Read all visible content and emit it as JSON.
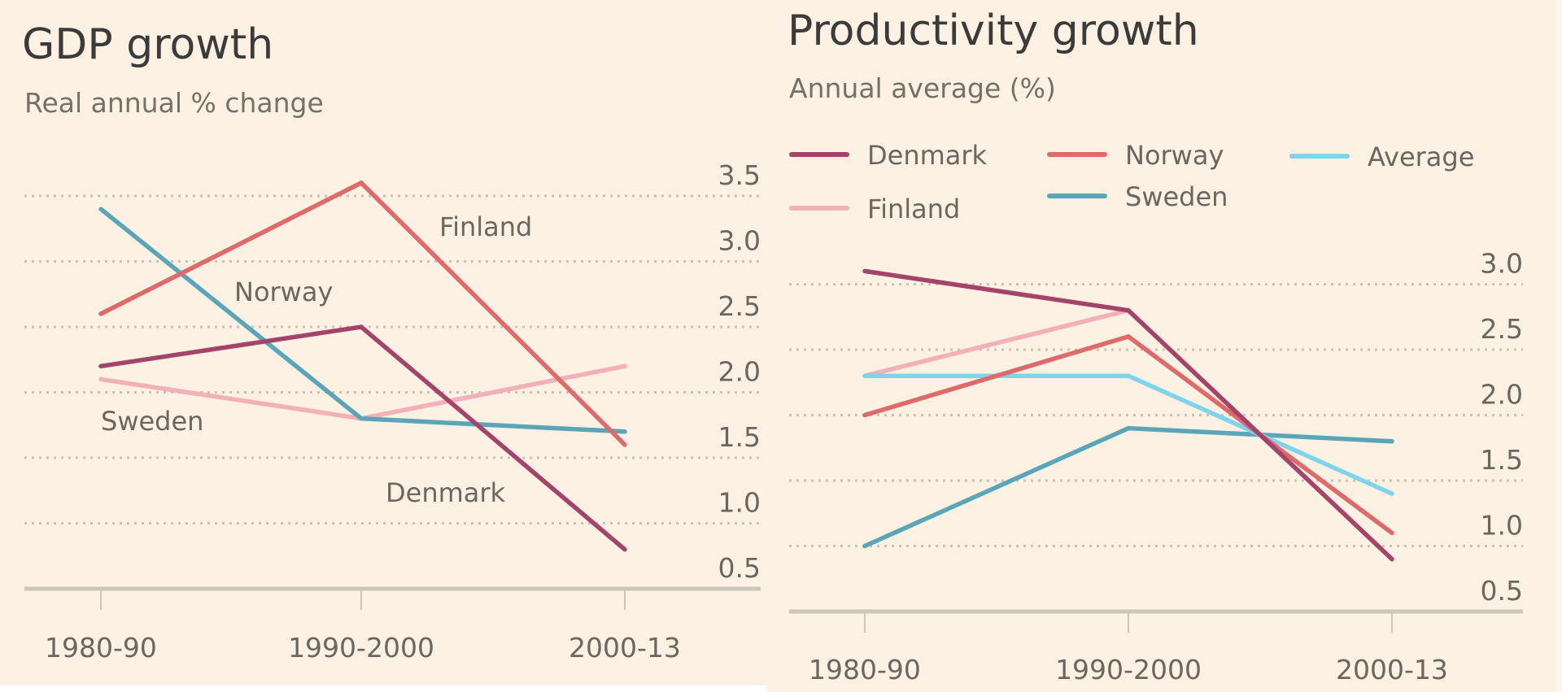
{
  "chart_data": [
    {
      "type": "line",
      "title": "GDP growth",
      "subtitle": "Real annual % change",
      "xlabel": "",
      "ylabel": "",
      "categories": [
        "1980-90",
        "1990-2000",
        "2000-13"
      ],
      "yticks": [
        "0.5",
        "1.0",
        "1.5",
        "2.0",
        "2.5",
        "3.0",
        "3.5"
      ],
      "ylim": [
        0.5,
        3.5
      ],
      "grid": true,
      "legend": "inline-labels",
      "series": [
        {
          "name": "Finland",
          "color": "#f3b0b8",
          "values": [
            2.1,
            1.8,
            2.2
          ]
        },
        {
          "name": "Sweden",
          "color": "#5aa6b8",
          "values": [
            3.4,
            1.8,
            1.7
          ]
        },
        {
          "name": "Denmark",
          "color": "#a5446a",
          "values": [
            2.2,
            2.5,
            0.8
          ]
        },
        {
          "name": "Norway",
          "color": "#e06a6a",
          "values": [
            2.6,
            3.6,
            1.6
          ]
        }
      ],
      "annotations": [
        {
          "text": "Finland"
        },
        {
          "text": "Norway"
        },
        {
          "text": "Sweden"
        },
        {
          "text": "Denmark"
        }
      ]
    },
    {
      "type": "line",
      "title": "Productivity growth",
      "subtitle": "Annual average (%)",
      "xlabel": "",
      "ylabel": "",
      "categories": [
        "1980-90",
        "1990-2000",
        "2000-13"
      ],
      "yticks": [
        "0.5",
        "1.0",
        "1.5",
        "2.0",
        "2.5",
        "3.0"
      ],
      "ylim": [
        0.5,
        3.0
      ],
      "grid": true,
      "legend": "top-left",
      "legend_entries": [
        "Denmark",
        "Norway",
        "Average",
        "Finland",
        "Sweden"
      ],
      "series": [
        {
          "name": "Finland",
          "color": "#f3b0b8",
          "values": [
            2.3,
            2.8,
            0.9
          ]
        },
        {
          "name": "Sweden",
          "color": "#5aa6b8",
          "values": [
            1.0,
            1.9,
            1.8
          ]
        },
        {
          "name": "Average",
          "color": "#7fd4ec",
          "values": [
            2.3,
            2.3,
            1.4
          ]
        },
        {
          "name": "Norway",
          "color": "#e06a6a",
          "values": [
            2.0,
            2.6,
            1.1
          ]
        },
        {
          "name": "Denmark",
          "color": "#a5446a",
          "values": [
            3.1,
            2.8,
            0.9
          ]
        }
      ]
    }
  ]
}
